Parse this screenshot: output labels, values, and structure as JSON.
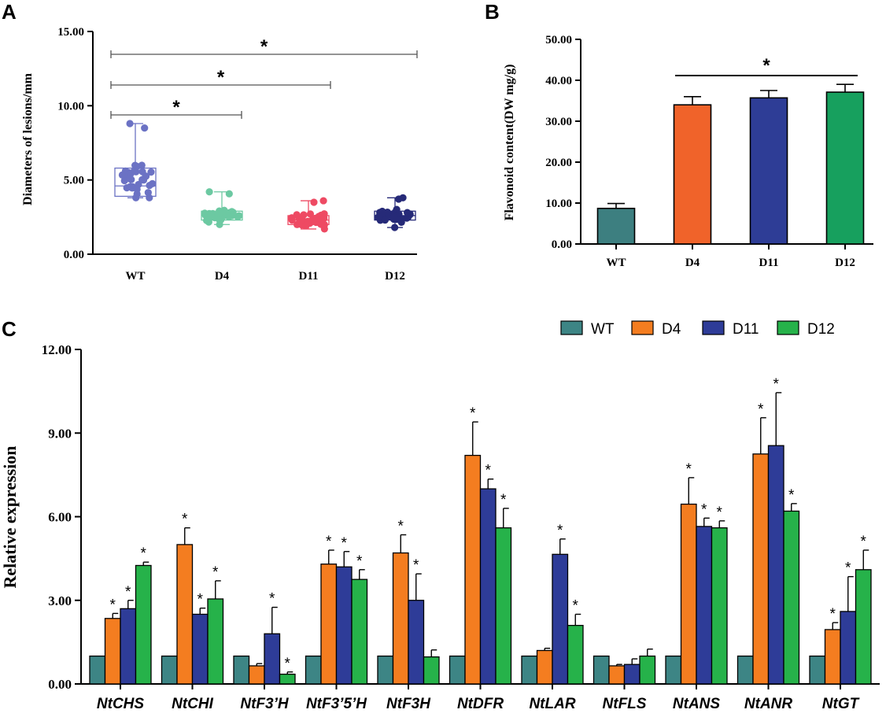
{
  "chart_data": [
    {
      "panel": "A",
      "type": "box",
      "xlabel": "",
      "ylabel": "Diameters of lesions/mm",
      "ylim": [
        0,
        15
      ],
      "yticks": [
        "0.00",
        "5.00",
        "10.00",
        "15.00"
      ],
      "categories": [
        "WT",
        "D4",
        "D11",
        "D12"
      ],
      "colors": [
        "#6b72c4",
        "#6cc9a2",
        "#ee4a63",
        "#262a78"
      ],
      "boxes": [
        {
          "q1": 3.9,
          "median": 4.6,
          "q3": 5.8,
          "min": 3.8,
          "max": 8.8
        },
        {
          "q1": 2.3,
          "median": 2.6,
          "q3": 2.9,
          "min": 2.0,
          "max": 4.2
        },
        {
          "q1": 2.0,
          "median": 2.3,
          "q3": 2.6,
          "min": 1.7,
          "max": 3.6
        },
        {
          "q1": 2.3,
          "median": 2.6,
          "q3": 2.9,
          "min": 1.8,
          "max": 3.8
        }
      ],
      "brackets": [
        {
          "from": "WT",
          "to": "D4",
          "label": "*"
        },
        {
          "from": "WT",
          "to": "D11",
          "label": "*"
        },
        {
          "from": "WT",
          "to": "D12",
          "label": "*"
        }
      ]
    },
    {
      "panel": "B",
      "type": "bar",
      "xlabel": "",
      "ylabel": "Flavonoid content(DW mg/g)",
      "ylim": [
        0,
        50
      ],
      "yticks": [
        "0.00",
        "10.00",
        "20.00",
        "30.00",
        "40.00",
        "50.00"
      ],
      "categories": [
        "WT",
        "D4",
        "D11",
        "D12"
      ],
      "values": [
        8.7,
        34.0,
        35.7,
        37.1
      ],
      "errors": [
        1.2,
        2.0,
        1.8,
        1.9
      ],
      "colors": [
        "#3d7f80",
        "#f0632a",
        "#2e3d96",
        "#17a05e"
      ],
      "significance": {
        "from": "D4",
        "to": "D12",
        "label": "*"
      }
    },
    {
      "panel": "C",
      "type": "bar",
      "xlabel": "",
      "ylabel": "Relative expression",
      "ylim": [
        0,
        12
      ],
      "yticks": [
        "0.00",
        "3.00",
        "6.00",
        "9.00",
        "12.00"
      ],
      "categories": [
        "NtCHS",
        "NtCHI",
        "NtF3’H",
        "NtF3’5’H",
        "NtF3H",
        "NtDFR",
        "NtLAR",
        "NtFLS",
        "NtANS",
        "NtANR",
        "NtGT"
      ],
      "series": [
        {
          "name": "WT",
          "color": "#3d8585",
          "values": [
            1,
            1,
            1,
            1,
            1,
            1,
            1,
            1,
            1,
            1,
            1
          ],
          "errors": [
            0,
            0,
            0,
            0,
            0,
            0,
            0,
            0,
            0,
            0,
            0
          ],
          "stars": [
            false,
            false,
            false,
            false,
            false,
            false,
            false,
            false,
            false,
            false,
            false
          ]
        },
        {
          "name": "D4",
          "color": "#f47d20",
          "values": [
            2.35,
            5.0,
            0.65,
            4.3,
            4.7,
            8.2,
            1.2,
            0.65,
            6.45,
            8.25,
            1.95
          ],
          "errors": [
            0.18,
            0.6,
            0.08,
            0.5,
            0.65,
            1.2,
            0.08,
            0.05,
            0.95,
            1.3,
            0.25
          ],
          "stars": [
            true,
            true,
            false,
            true,
            true,
            true,
            false,
            false,
            true,
            true,
            true
          ]
        },
        {
          "name": "D11",
          "color": "#2e3c98",
          "values": [
            2.7,
            2.5,
            1.8,
            4.2,
            3.0,
            7.0,
            4.65,
            0.7,
            5.65,
            8.55,
            2.6
          ],
          "errors": [
            0.3,
            0.22,
            0.95,
            0.55,
            0.95,
            0.35,
            0.55,
            0.2,
            0.3,
            1.9,
            1.25
          ],
          "stars": [
            true,
            true,
            true,
            true,
            true,
            true,
            true,
            false,
            true,
            true,
            true
          ]
        },
        {
          "name": "D12",
          "color": "#26b24a",
          "values": [
            4.25,
            3.05,
            0.35,
            3.75,
            0.97,
            5.6,
            2.1,
            1.0,
            5.6,
            6.2,
            4.1
          ],
          "errors": [
            0.12,
            0.65,
            0.08,
            0.35,
            0.25,
            0.7,
            0.4,
            0.25,
            0.25,
            0.27,
            0.7
          ],
          "stars": [
            true,
            true,
            true,
            true,
            false,
            true,
            true,
            false,
            true,
            true,
            true
          ]
        }
      ]
    }
  ]
}
